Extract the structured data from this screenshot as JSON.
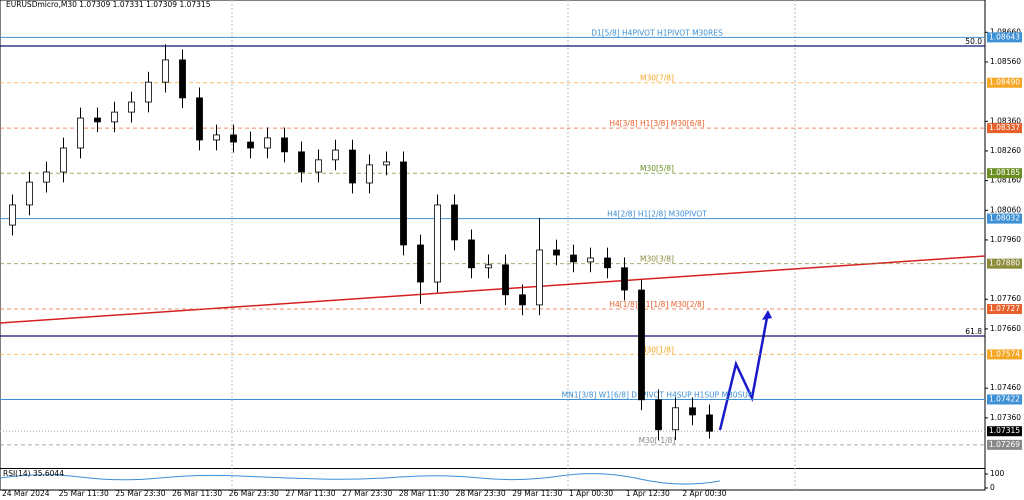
{
  "chart_data": {
    "type": "candlestick",
    "title": "EURUSDmicro,M30  1.07309 1.07331 1.07309 1.07315",
    "ylim": [
      1.07191,
      1.08769
    ],
    "yticks": [
      {
        "value": 1.0866,
        "label": "1.08660"
      },
      {
        "value": 1.0856,
        "label": "1.08560"
      },
      {
        "value": 1.0836,
        "label": "1.08360"
      },
      {
        "value": 1.0826,
        "label": "1.08260"
      },
      {
        "value": 1.0816,
        "label": "1.08160"
      },
      {
        "value": 1.0806,
        "label": "1.08060"
      },
      {
        "value": 1.0796,
        "label": "1.07960"
      },
      {
        "value": 1.0776,
        "label": "1.07760"
      },
      {
        "value": 1.0766,
        "label": "1.07660"
      },
      {
        "value": 1.0746,
        "label": "1.07460"
      },
      {
        "value": 1.0736,
        "label": "1.07360"
      }
    ],
    "x_labels": [
      "24 Mar 2024",
      "25 Mar 11:30",
      "25 Mar 23:30",
      "26 Mar 11:30",
      "26 Mar 23:30",
      "27 Mar 11:30",
      "27 Mar 23:30",
      "28 Mar 11:30",
      "28 Mar 23:30",
      "29 Mar 11:30",
      "1 Apr 00:30",
      "1 Apr 12:30",
      "2 Apr 00:30"
    ],
    "up_color": "#000000",
    "down_color": "#000000",
    "open": [
      1.0801,
      1.08078,
      1.08155,
      1.08189,
      1.0827,
      1.08371,
      1.08358,
      1.08391,
      1.08425,
      1.08492,
      1.08567,
      1.08439,
      1.08297,
      1.08314,
      1.0829,
      1.0827,
      1.08304,
      1.08257,
      1.08189,
      1.0823,
      1.08263,
      1.08152,
      1.08213,
      1.08223,
      1.07943,
      1.07818,
      1.08078,
      1.0796,
      1.07866,
      1.07876,
      1.07775,
      1.07741,
      1.07926,
      1.07909,
      1.07886,
      1.07899,
      1.07866,
      1.07791,
      1.07421,
      1.0732,
      1.07394,
      1.0737
    ],
    "high": [
      1.08113,
      1.0819,
      1.08224,
      1.08305,
      1.08406,
      1.08406,
      1.08426,
      1.0846,
      1.08527,
      1.0862,
      1.08602,
      1.08474,
      1.08349,
      1.08349,
      1.08325,
      1.08339,
      1.08339,
      1.08292,
      1.08265,
      1.08298,
      1.08298,
      1.08248,
      1.08258,
      1.08258,
      1.07978,
      1.08113,
      1.08113,
      1.07995,
      1.07911,
      1.07911,
      1.0781,
      1.08034,
      1.07961,
      1.07944,
      1.07934,
      1.07934,
      1.07901,
      1.07826,
      1.07456,
      1.07429,
      1.07429,
      1.07405
    ],
    "low": [
      1.07975,
      1.08043,
      1.0812,
      1.08154,
      1.08235,
      1.08323,
      1.08323,
      1.08356,
      1.0839,
      1.08457,
      1.08404,
      1.08262,
      1.08262,
      1.08255,
      1.08235,
      1.08235,
      1.08222,
      1.08154,
      1.08154,
      1.08195,
      1.08117,
      1.08117,
      1.08178,
      1.07908,
      1.07745,
      1.07783,
      1.07925,
      1.07831,
      1.07831,
      1.0774,
      1.07706,
      1.07706,
      1.07874,
      1.07851,
      1.07851,
      1.07831,
      1.07756,
      1.07386,
      1.07285,
      1.07285,
      1.07335,
      1.0729
    ],
    "close": [
      1.08078,
      1.08155,
      1.08189,
      1.0827,
      1.08371,
      1.08358,
      1.08391,
      1.08425,
      1.08492,
      1.08567,
      1.08439,
      1.08297,
      1.08314,
      1.0829,
      1.0827,
      1.08304,
      1.08257,
      1.08189,
      1.0823,
      1.08263,
      1.08152,
      1.08213,
      1.08223,
      1.07943,
      1.07818,
      1.08078,
      1.0796,
      1.07866,
      1.07876,
      1.07775,
      1.07741,
      1.07926,
      1.07909,
      1.07886,
      1.07899,
      1.07866,
      1.07791,
      1.07421,
      1.0732,
      1.07394,
      1.0737,
      1.07315
    ],
    "levels": [
      {
        "name": "D1[5/8] H4PIVOT H1PIVOT M30RES",
        "price": 1.08643,
        "color": "#3d8fd6"
      },
      {
        "name": "M30[7/8]",
        "price": {
          "value": 1.0849,
          "label": "1.08490"
        },
        "color": "#f5a623"
      },
      {
        "name": "H4[3/8] H1[3/8] M30[6/8]",
        "price": 1.08337,
        "color": "#e8602c"
      },
      {
        "name": "M30[5/8]",
        "price": 1.08185,
        "color": "#6b8e23"
      },
      {
        "name": "H4[2/8] H1[2/8] M30PIVOT",
        "price": 1.08032,
        "color": "#3d8fd6"
      },
      {
        "name": "M30[3/8]",
        "price": {
          "value": 1.0788,
          "label": "1.07880"
        },
        "color": "#8b8b3a"
      },
      {
        "name": "H4[1/8] H1[1/8] M30[2/8]",
        "price": 1.07727,
        "color": "#e8602c"
      },
      {
        "name": "M30[1/8]",
        "price": 1.07574,
        "color": "#f5a623"
      },
      {
        "name": "MN1[3/8] W1[6/8] D1PIVOT H4SUP H1SUP M30SUP",
        "price": 1.07422,
        "color": "#3d8fd6"
      },
      {
        "name": "M30[-1/8]",
        "price": 1.07269,
        "color": "#888888"
      }
    ],
    "current_price": 1.07315,
    "fib_levels": [
      {
        "label": "50.0",
        "price": 1.08614
      },
      {
        "label": "61.8",
        "price": 1.07636
      }
    ],
    "indicator": {
      "label": "RSI(14) 35.6044",
      "ylim": [
        0,
        100
      ],
      "yticks": [
        100,
        0
      ]
    }
  }
}
